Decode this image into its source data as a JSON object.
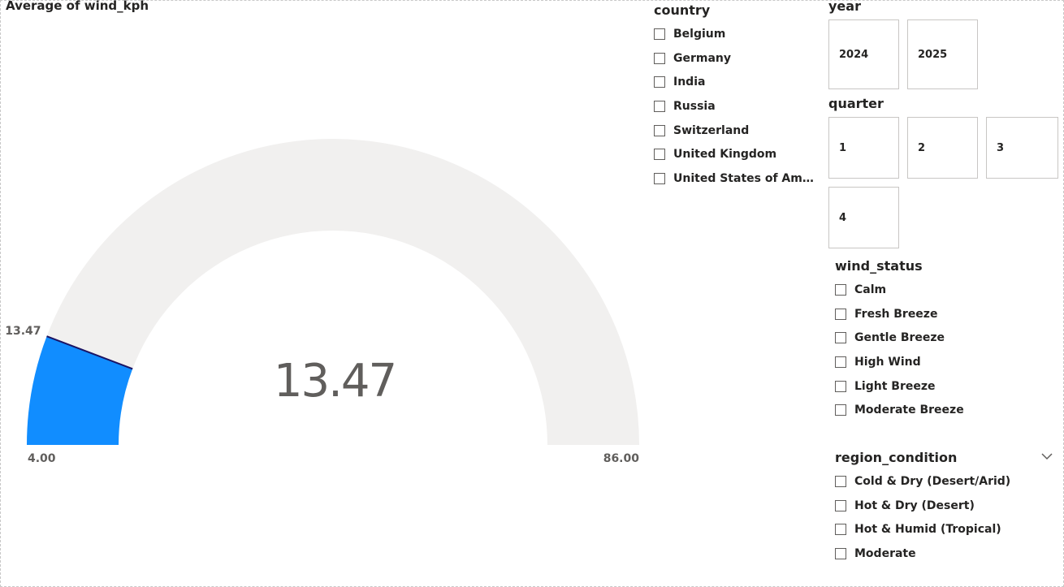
{
  "gauge": {
    "title": "Average of wind_kph",
    "value": 13.47,
    "min": 4.0,
    "max": 86.0,
    "value_label": "13.47",
    "callout": "13.47",
    "min_label": "4.00",
    "max_label": "86.00",
    "fill_color": "#118DFF",
    "track_color": "#F1F0EF",
    "needle_color": "#1B1464"
  },
  "country": {
    "title": "country",
    "items": [
      "Belgium",
      "Germany",
      "India",
      "Russia",
      "Switzerland",
      "United Kingdom",
      "United States of Ame..."
    ]
  },
  "year": {
    "title": "year",
    "tiles": [
      "2024",
      "2025"
    ]
  },
  "quarter": {
    "title": "quarter",
    "tiles": [
      "1",
      "2",
      "3",
      "4"
    ]
  },
  "wind_status": {
    "title": "wind_status",
    "items": [
      "Calm",
      "Fresh Breeze",
      "Gentle Breeze",
      "High Wind",
      "Light Breeze",
      "Moderate Breeze"
    ]
  },
  "region_condition": {
    "title": "region_condition",
    "expand_icon": "chevron-down-icon",
    "items": [
      "Cold & Dry (Desert/Arid)",
      "Hot & Dry (Desert)",
      "Hot & Humid (Tropical)",
      "Moderate"
    ]
  }
}
